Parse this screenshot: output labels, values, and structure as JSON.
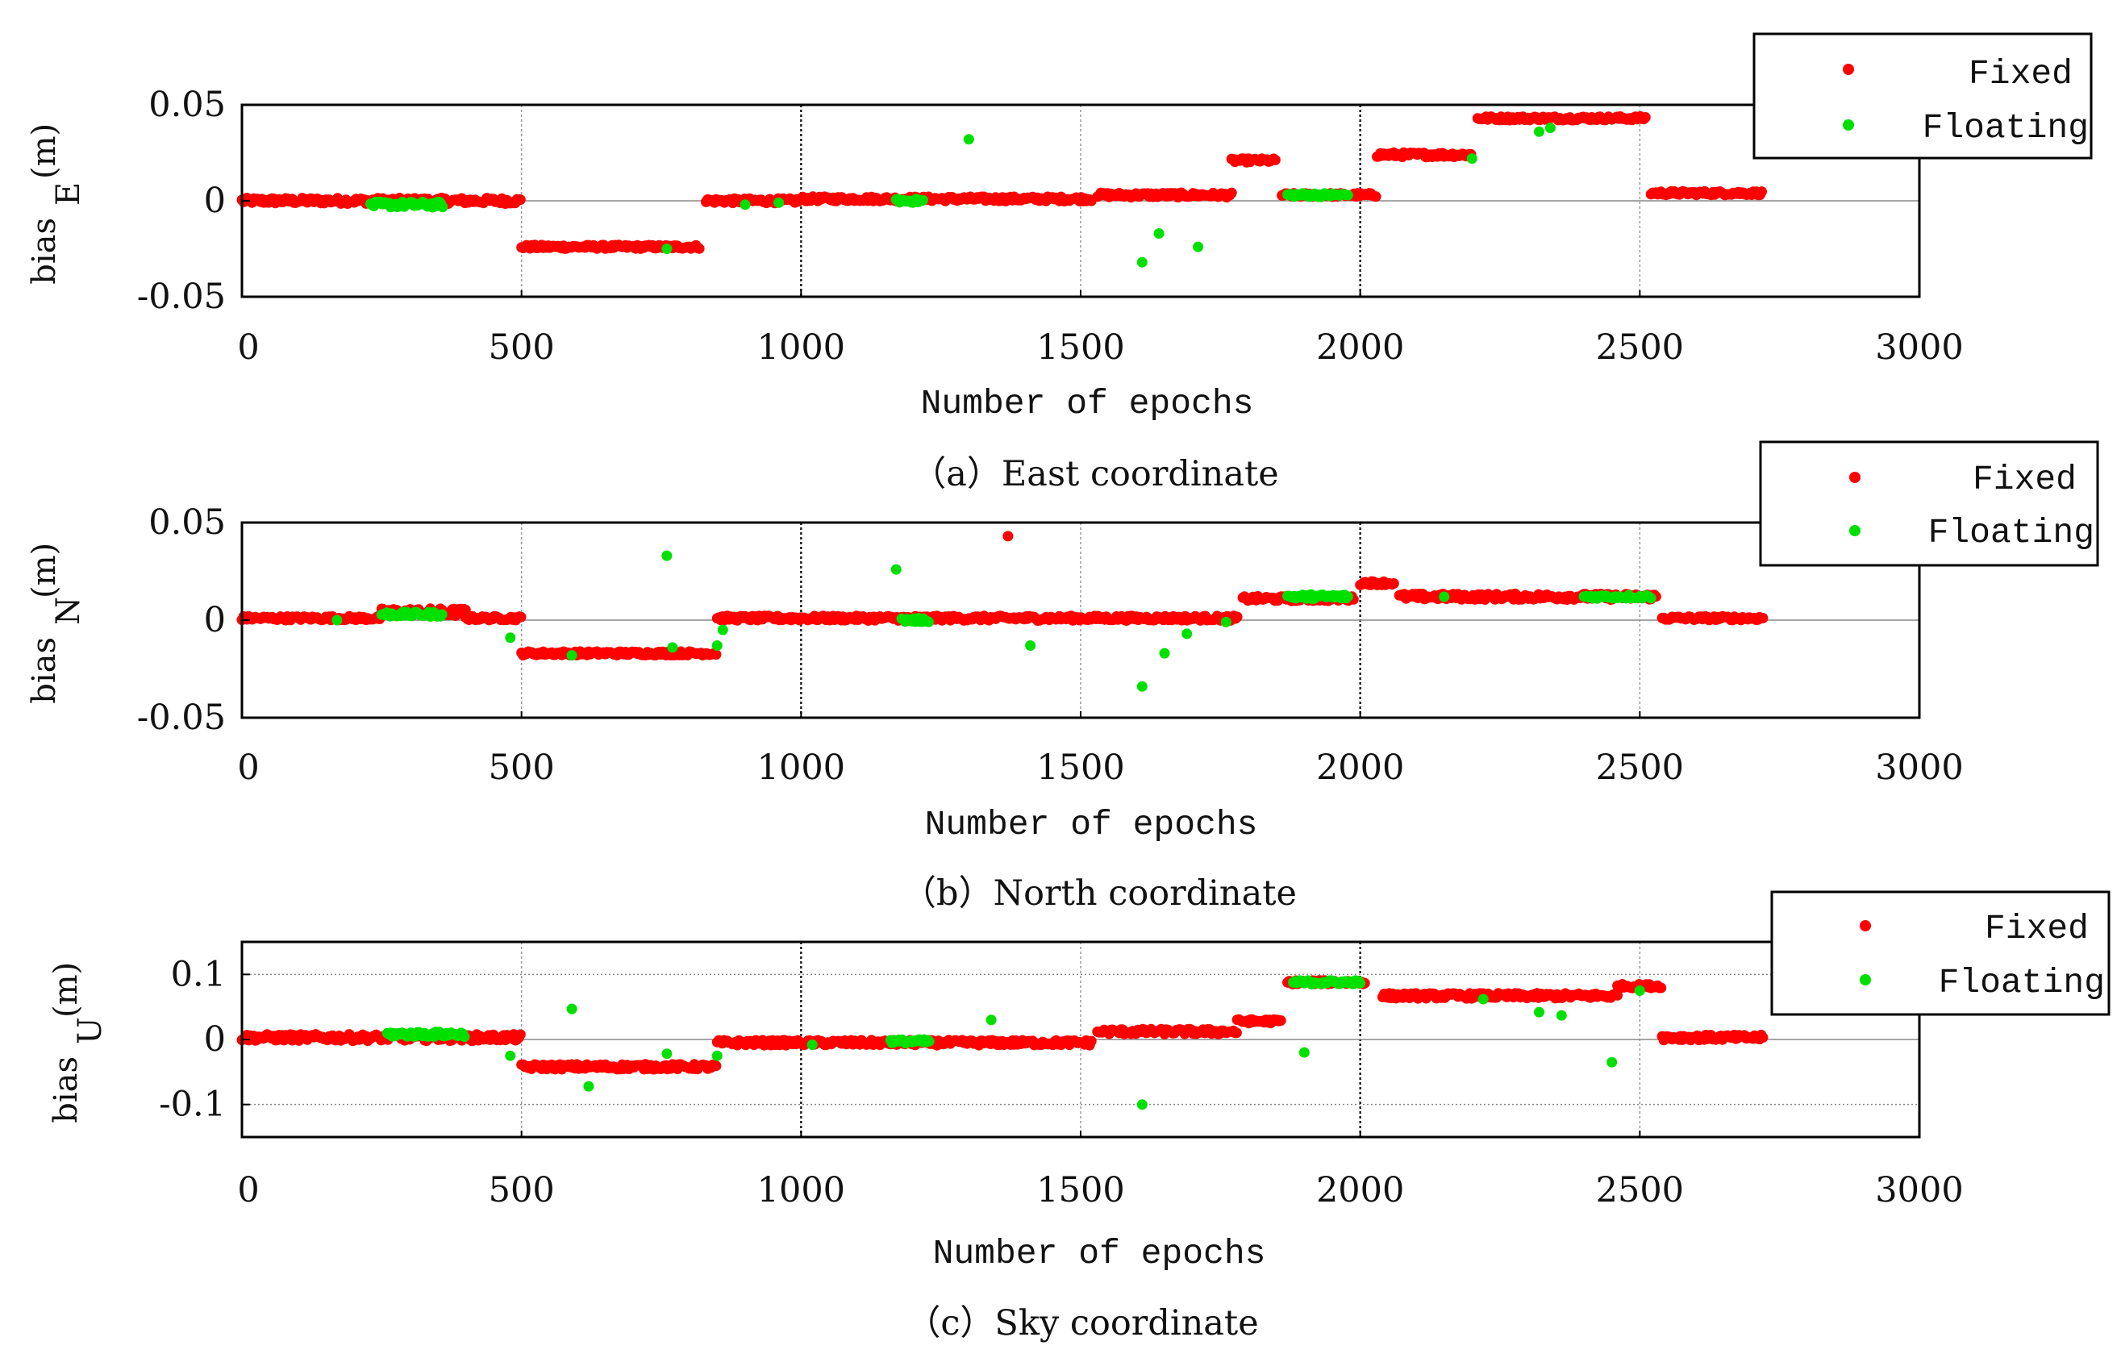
{
  "colors": {
    "fixed": "#ff0000",
    "floating": "#00e000",
    "axis": "#000000",
    "grid": "#888888",
    "background": "#ffffff"
  },
  "chart_data": [
    {
      "type": "scatter",
      "caption": "（a）East coordinate",
      "xlabel": "Number of epochs",
      "ylabel_main": "bias",
      "ylabel_sub": "E",
      "ylabel_unit": "(m)",
      "xlim": [
        0,
        3000
      ],
      "ylim": [
        -0.05,
        0.05
      ],
      "xticks": [
        0,
        500,
        1000,
        1500,
        2000,
        2500,
        3000
      ],
      "xtick_labels": [
        "0",
        "500",
        "1000",
        "1500",
        "2000",
        "2500",
        "3000"
      ],
      "yticks": [
        0.05,
        0,
        -0.05
      ],
      "ytick_labels": [
        "0.05",
        "0",
        "-0.05"
      ],
      "legend": {
        "position": "top-right",
        "entries": [
          "Fixed",
          "Floating"
        ]
      },
      "series": [
        {
          "name": "Fixed",
          "segments": [
            {
              "x0": 0,
              "x1": 500,
              "y": 0.0,
              "jitter": 0.0015,
              "step": 3
            },
            {
              "x0": 500,
              "x1": 820,
              "y": -0.024,
              "jitter": 0.001,
              "step": 3
            },
            {
              "x0": 830,
              "x1": 1000,
              "y": 0.0,
              "jitter": 0.0012,
              "step": 3
            },
            {
              "x0": 1000,
              "x1": 1520,
              "y": 0.001,
              "jitter": 0.0012,
              "step": 3
            },
            {
              "x0": 1530,
              "x1": 1770,
              "y": 0.003,
              "jitter": 0.0012,
              "step": 3
            },
            {
              "x0": 1770,
              "x1": 1850,
              "y": 0.021,
              "jitter": 0.001,
              "step": 3
            },
            {
              "x0": 1860,
              "x1": 2030,
              "y": 0.003,
              "jitter": 0.001,
              "step": 3
            },
            {
              "x0": 2030,
              "x1": 2200,
              "y": 0.024,
              "jitter": 0.0012,
              "step": 3
            },
            {
              "x0": 2210,
              "x1": 2510,
              "y": 0.043,
              "jitter": 0.001,
              "step": 3
            },
            {
              "x0": 2520,
              "x1": 2720,
              "y": 0.004,
              "jitter": 0.001,
              "step": 3
            }
          ],
          "points": []
        },
        {
          "name": "Floating",
          "segments": [
            {
              "x0": 230,
              "x1": 360,
              "y": -0.002,
              "jitter": 0.0015,
              "step": 3
            },
            {
              "x0": 1170,
              "x1": 1220,
              "y": 0.0,
              "jitter": 0.001,
              "step": 3
            },
            {
              "x0": 1870,
              "x1": 1980,
              "y": 0.003,
              "jitter": 0.001,
              "step": 3
            }
          ],
          "points": [
            [
              760,
              -0.025
            ],
            [
              900,
              -0.002
            ],
            [
              960,
              -0.001
            ],
            [
              1300,
              0.032
            ],
            [
              1610,
              -0.032
            ],
            [
              1640,
              -0.017
            ],
            [
              1710,
              -0.024
            ],
            [
              2200,
              0.022
            ],
            [
              2320,
              0.036
            ],
            [
              2340,
              0.038
            ]
          ]
        }
      ]
    },
    {
      "type": "scatter",
      "caption": "（b）North coordinate",
      "xlabel": "Number of epochs",
      "ylabel_main": "bias",
      "ylabel_sub": "N",
      "ylabel_unit": "(m)",
      "xlim": [
        0,
        3000
      ],
      "ylim": [
        -0.05,
        0.05
      ],
      "xticks": [
        0,
        500,
        1000,
        1500,
        2000,
        2500,
        3000
      ],
      "xtick_labels": [
        "0",
        "500",
        "1000",
        "1500",
        "2000",
        "2500",
        "3000"
      ],
      "yticks": [
        0.05,
        0,
        -0.05
      ],
      "ytick_labels": [
        "0.05",
        "0",
        "-0.05"
      ],
      "legend": {
        "position": "top-right",
        "entries": [
          "Fixed",
          "Floating"
        ]
      },
      "series": [
        {
          "name": "Fixed",
          "segments": [
            {
              "x0": 0,
              "x1": 250,
              "y": 0.001,
              "jitter": 0.001,
              "step": 3
            },
            {
              "x0": 250,
              "x1": 400,
              "y": 0.004,
              "jitter": 0.002,
              "step": 3
            },
            {
              "x0": 400,
              "x1": 500,
              "y": 0.001,
              "jitter": 0.001,
              "step": 3
            },
            {
              "x0": 500,
              "x1": 850,
              "y": -0.017,
              "jitter": 0.001,
              "step": 3
            },
            {
              "x0": 850,
              "x1": 1780,
              "y": 0.001,
              "jitter": 0.0012,
              "step": 3
            },
            {
              "x0": 1790,
              "x1": 1990,
              "y": 0.011,
              "jitter": 0.0012,
              "step": 3
            },
            {
              "x0": 2000,
              "x1": 2060,
              "y": 0.019,
              "jitter": 0.001,
              "step": 3
            },
            {
              "x0": 2070,
              "x1": 2530,
              "y": 0.012,
              "jitter": 0.0015,
              "step": 3
            },
            {
              "x0": 2540,
              "x1": 2720,
              "y": 0.001,
              "jitter": 0.001,
              "step": 3
            }
          ],
          "points": [
            [
              1370,
              0.043
            ]
          ]
        },
        {
          "name": "Floating",
          "segments": [
            {
              "x0": 250,
              "x1": 360,
              "y": 0.003,
              "jitter": 0.0012,
              "step": 3
            },
            {
              "x0": 1180,
              "x1": 1230,
              "y": 0.0,
              "jitter": 0.001,
              "step": 3
            },
            {
              "x0": 1870,
              "x1": 1980,
              "y": 0.012,
              "jitter": 0.0012,
              "step": 3
            },
            {
              "x0": 2400,
              "x1": 2520,
              "y": 0.012,
              "jitter": 0.001,
              "step": 4
            }
          ],
          "points": [
            [
              170,
              0.0
            ],
            [
              480,
              -0.009
            ],
            [
              590,
              -0.018
            ],
            [
              760,
              0.033
            ],
            [
              770,
              -0.014
            ],
            [
              850,
              -0.013
            ],
            [
              860,
              -0.005
            ],
            [
              1170,
              0.026
            ],
            [
              1410,
              -0.013
            ],
            [
              1610,
              -0.034
            ],
            [
              1650,
              -0.017
            ],
            [
              1690,
              -0.007
            ],
            [
              1760,
              -0.001
            ],
            [
              2150,
              0.012
            ]
          ]
        }
      ]
    },
    {
      "type": "scatter",
      "caption": "（c）Sky coordinate",
      "xlabel": "Number of epochs",
      "ylabel_main": "bias",
      "ylabel_sub": "U",
      "ylabel_unit": "(m)",
      "xlim": [
        0,
        3000
      ],
      "ylim": [
        -0.15,
        0.15
      ],
      "xticks": [
        0,
        500,
        1000,
        1500,
        2000,
        2500,
        3000
      ],
      "xtick_labels": [
        "0",
        "500",
        "1000",
        "1500",
        "2000",
        "2500",
        "3000"
      ],
      "yticks": [
        0.1,
        0,
        -0.1
      ],
      "ytick_labels": [
        "0.1",
        "0",
        "-0.1"
      ],
      "legend": {
        "position": "top-right",
        "entries": [
          "Fixed",
          "Floating"
        ]
      },
      "series": [
        {
          "name": "Fixed",
          "segments": [
            {
              "x0": 0,
              "x1": 500,
              "y": 0.003,
              "jitter": 0.005,
              "step": 3
            },
            {
              "x0": 500,
              "x1": 850,
              "y": -0.042,
              "jitter": 0.004,
              "step": 3
            },
            {
              "x0": 850,
              "x1": 1150,
              "y": -0.005,
              "jitter": 0.004,
              "step": 3
            },
            {
              "x0": 1150,
              "x1": 1520,
              "y": -0.005,
              "jitter": 0.004,
              "step": 3
            },
            {
              "x0": 1530,
              "x1": 1780,
              "y": 0.012,
              "jitter": 0.004,
              "step": 3
            },
            {
              "x0": 1780,
              "x1": 1860,
              "y": 0.028,
              "jitter": 0.003,
              "step": 3
            },
            {
              "x0": 1870,
              "x1": 2010,
              "y": 0.088,
              "jitter": 0.003,
              "step": 3
            },
            {
              "x0": 2040,
              "x1": 2460,
              "y": 0.067,
              "jitter": 0.004,
              "step": 3
            },
            {
              "x0": 2460,
              "x1": 2540,
              "y": 0.082,
              "jitter": 0.003,
              "step": 3
            },
            {
              "x0": 2540,
              "x1": 2720,
              "y": 0.003,
              "jitter": 0.004,
              "step": 3
            }
          ],
          "points": []
        },
        {
          "name": "Floating",
          "segments": [
            {
              "x0": 260,
              "x1": 400,
              "y": 0.008,
              "jitter": 0.004,
              "step": 3
            },
            {
              "x0": 1160,
              "x1": 1230,
              "y": -0.003,
              "jitter": 0.003,
              "step": 3
            },
            {
              "x0": 1880,
              "x1": 2000,
              "y": 0.088,
              "jitter": 0.003,
              "step": 3
            }
          ],
          "points": [
            [
              480,
              -0.025
            ],
            [
              590,
              0.047
            ],
            [
              620,
              -0.072
            ],
            [
              760,
              -0.022
            ],
            [
              850,
              -0.025
            ],
            [
              1020,
              -0.008
            ],
            [
              1340,
              0.03
            ],
            [
              1610,
              -0.1
            ],
            [
              1900,
              -0.02
            ],
            [
              2220,
              0.062
            ],
            [
              2320,
              0.042
            ],
            [
              2360,
              0.037
            ],
            [
              2450,
              -0.035
            ],
            [
              2500,
              0.075
            ]
          ]
        }
      ]
    }
  ]
}
